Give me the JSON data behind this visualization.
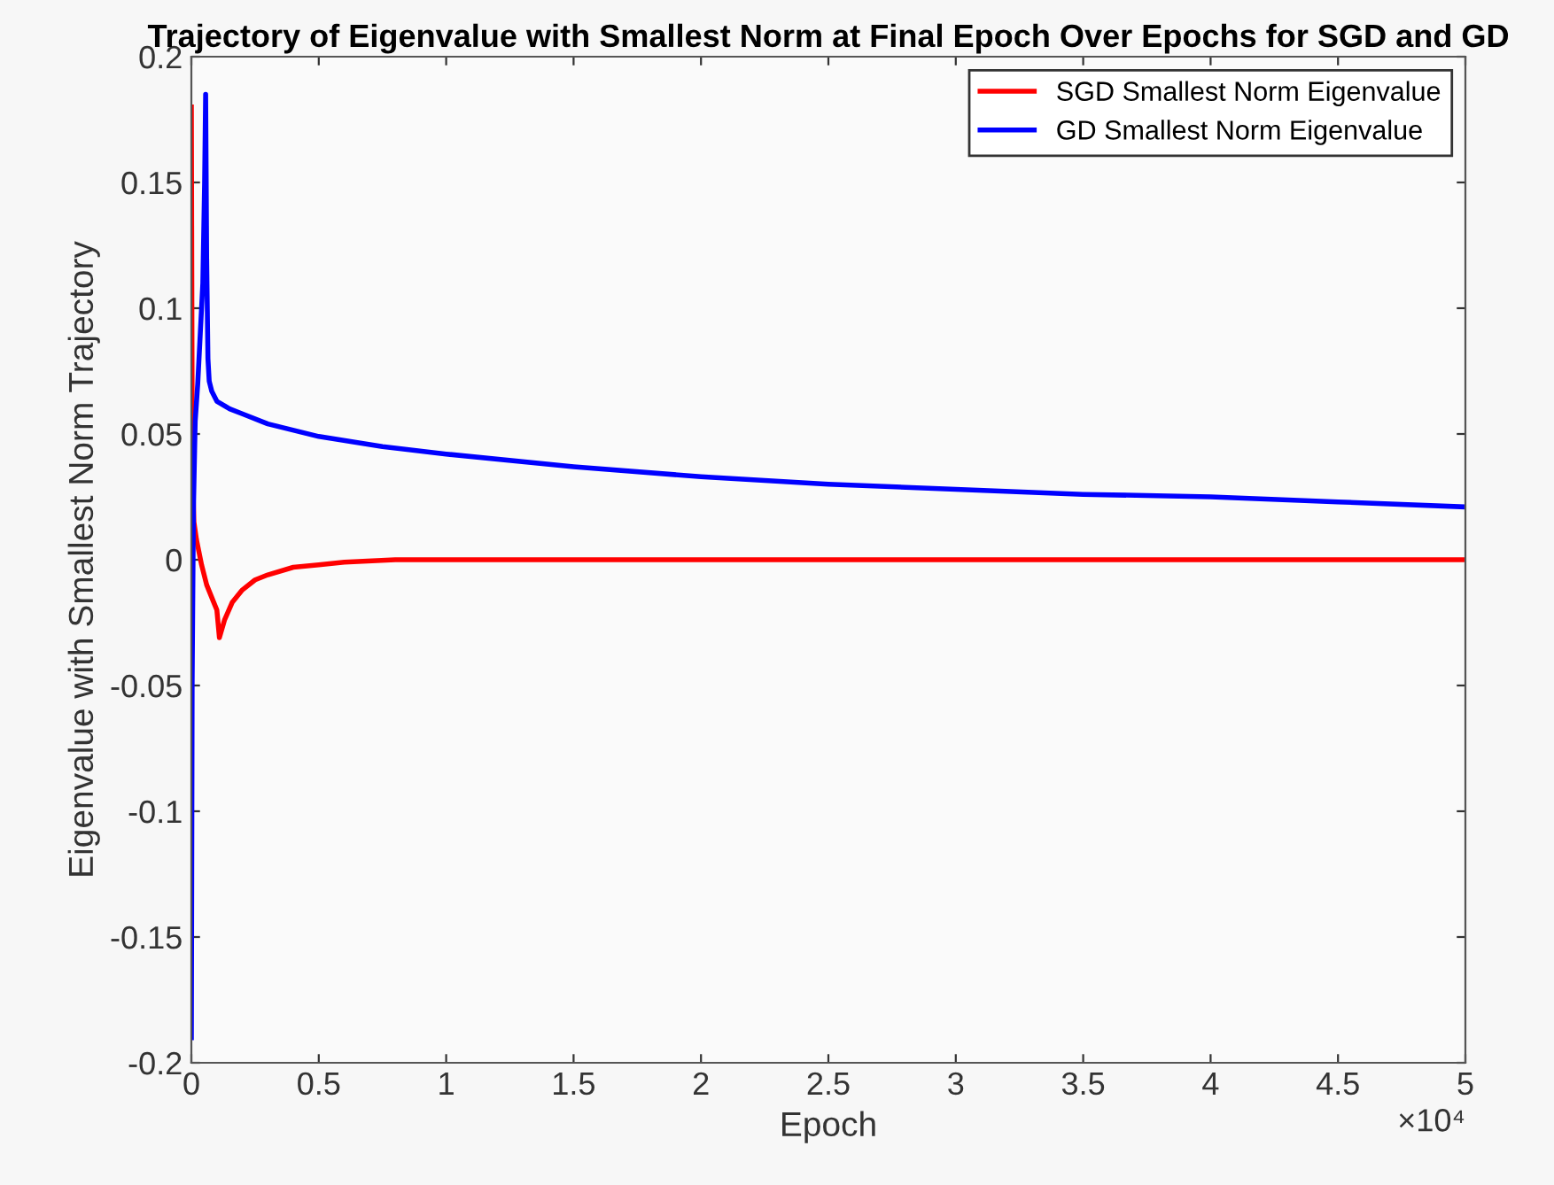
{
  "chart_data": {
    "type": "line",
    "title": "Trajectory of Eigenvalue with Smallest Norm at Final Epoch Over Epochs for SGD and GD",
    "xlabel": "Epoch",
    "ylabel": "Eigenvalue with Smallest Norm Trajectory",
    "series": [
      {
        "name": "SGD Smallest Norm Eigenvalue",
        "color": "#ff0000",
        "x": [
          0,
          0.003,
          0.006,
          0.01,
          0.02,
          0.04,
          0.06,
          0.08,
          0.1,
          0.11,
          0.13,
          0.16,
          0.2,
          0.25,
          0.3,
          0.4,
          0.5,
          0.6,
          0.8,
          1,
          2,
          3,
          4,
          5
        ],
        "values": [
          0.18,
          0.06,
          0.03,
          0.015,
          0.008,
          -0.002,
          -0.01,
          -0.015,
          -0.02,
          -0.031,
          -0.024,
          -0.017,
          -0.012,
          -0.008,
          -0.006,
          -0.003,
          -0.002,
          -0.001,
          0,
          0,
          0,
          0,
          0,
          0
        ]
      },
      {
        "name": "GD Smallest Norm Eigenvalue",
        "color": "#0000ff",
        "x": [
          0,
          0.003,
          0.008,
          0.015,
          0.025,
          0.035,
          0.045,
          0.052,
          0.056,
          0.06,
          0.065,
          0.07,
          0.08,
          0.1,
          0.15,
          0.2,
          0.3,
          0.5,
          0.75,
          1,
          1.5,
          2,
          2.5,
          3,
          3.5,
          4,
          4.5,
          5
        ],
        "values": [
          -0.19,
          -0.05,
          0.02,
          0.055,
          0.07,
          0.09,
          0.11,
          0.15,
          0.185,
          0.12,
          0.08,
          0.071,
          0.067,
          0.063,
          0.06,
          0.058,
          0.054,
          0.049,
          0.045,
          0.042,
          0.037,
          0.033,
          0.03,
          0.028,
          0.026,
          0.025,
          0.023,
          0.021
        ]
      }
    ],
    "xlim": [
      0,
      5
    ],
    "ylim": [
      -0.2,
      0.2
    ],
    "xticks": [
      0,
      0.5,
      1,
      1.5,
      2,
      2.5,
      3,
      3.5,
      4,
      4.5,
      5
    ],
    "yticks": [
      -0.2,
      -0.15,
      -0.1,
      -0.05,
      0,
      0.05,
      0.1,
      0.15,
      0.2
    ],
    "annotations": [
      "×10⁴"
    ],
    "legend": "top right",
    "grid": false,
    "line_style": "solid",
    "marker": "none"
  }
}
